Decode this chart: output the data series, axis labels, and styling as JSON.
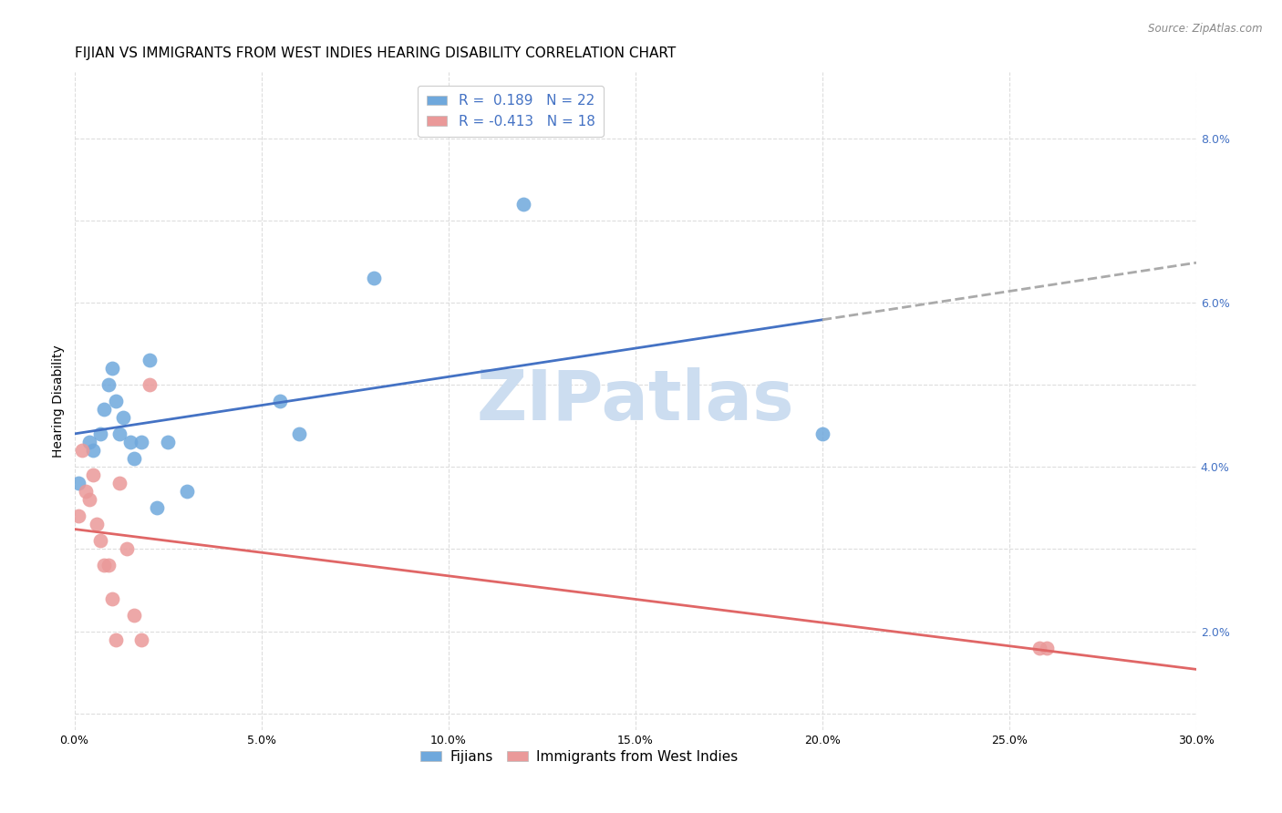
{
  "title": "FIJIAN VS IMMIGRANTS FROM WEST INDIES HEARING DISABILITY CORRELATION CHART",
  "source": "Source: ZipAtlas.com",
  "ylabel": "Hearing Disability",
  "xlim": [
    0.0,
    0.3
  ],
  "ylim": [
    0.008,
    0.088
  ],
  "xticks": [
    0.0,
    0.05,
    0.1,
    0.15,
    0.2,
    0.25,
    0.3
  ],
  "yticks": [
    0.01,
    0.02,
    0.03,
    0.04,
    0.05,
    0.06,
    0.07,
    0.08
  ],
  "fijian_color": "#6fa8dc",
  "west_indies_color": "#ea9999",
  "fijian_R": 0.189,
  "fijian_N": 22,
  "west_indies_R": -0.413,
  "west_indies_N": 18,
  "fijian_scatter_x": [
    0.001,
    0.004,
    0.005,
    0.007,
    0.008,
    0.009,
    0.01,
    0.011,
    0.012,
    0.013,
    0.015,
    0.016,
    0.018,
    0.02,
    0.022,
    0.025,
    0.03,
    0.055,
    0.06,
    0.08,
    0.12,
    0.2
  ],
  "fijian_scatter_y": [
    0.038,
    0.043,
    0.042,
    0.044,
    0.047,
    0.05,
    0.052,
    0.048,
    0.044,
    0.046,
    0.043,
    0.041,
    0.043,
    0.053,
    0.035,
    0.043,
    0.037,
    0.048,
    0.044,
    0.063,
    0.072,
    0.044
  ],
  "west_indies_scatter_x": [
    0.001,
    0.002,
    0.003,
    0.004,
    0.005,
    0.006,
    0.007,
    0.008,
    0.009,
    0.01,
    0.011,
    0.012,
    0.014,
    0.016,
    0.018,
    0.02,
    0.258,
    0.26
  ],
  "west_indies_scatter_y": [
    0.034,
    0.042,
    0.037,
    0.036,
    0.039,
    0.033,
    0.031,
    0.028,
    0.028,
    0.024,
    0.019,
    0.038,
    0.03,
    0.022,
    0.019,
    0.05,
    0.018,
    0.018
  ],
  "fijian_line_color": "#4472c4",
  "west_indies_line_color": "#e06666",
  "fijian_dashed_color": "#aaaaaa",
  "background_color": "#ffffff",
  "grid_color": "#dddddd",
  "title_fontsize": 11,
  "axis_label_fontsize": 10,
  "tick_fontsize": 9,
  "legend_fontsize": 11,
  "watermark_text": "ZIPatlas",
  "watermark_color": "#ccddf0",
  "watermark_fontsize": 55
}
